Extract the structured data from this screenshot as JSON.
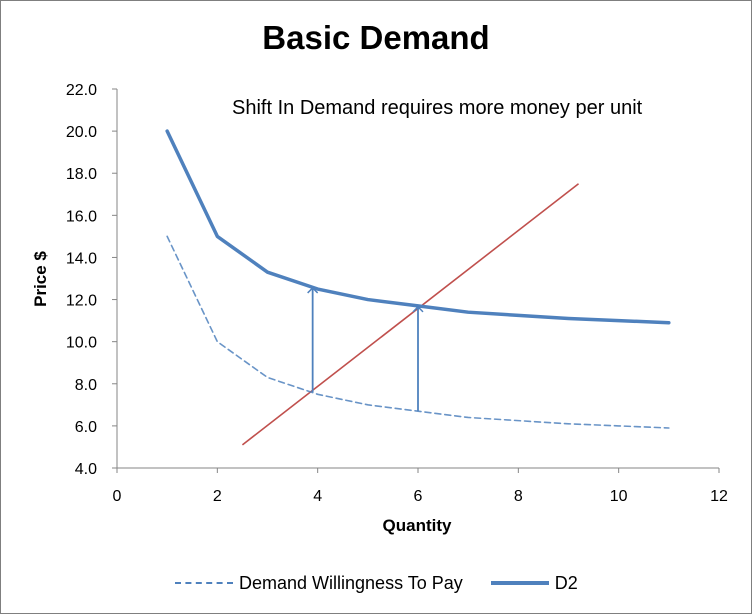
{
  "chart_data": {
    "type": "line",
    "title": "Basic Demand",
    "xlabel": "Quantity",
    "ylabel": "Price $",
    "xlim": [
      0,
      12
    ],
    "ylim": [
      4.0,
      22.0
    ],
    "xticks": [
      "0",
      "2",
      "4",
      "6",
      "8",
      "10",
      "12"
    ],
    "yticks": [
      "4.0",
      "6.0",
      "8.0",
      "10.0",
      "12.0",
      "14.0",
      "16.0",
      "18.0",
      "20.0",
      "22.0"
    ],
    "annotation": "Shift In Demand requires more money per unit",
    "legend_position": "bottom",
    "series": [
      {
        "name": "Demand Willingness To Pay",
        "style": "dashed",
        "color": "#4f81bd",
        "x": [
          1,
          2,
          3,
          4,
          5,
          6,
          7,
          8,
          9,
          10,
          11
        ],
        "values": [
          15.0,
          10.0,
          8.3,
          7.5,
          7.0,
          6.7,
          6.4,
          6.25,
          6.1,
          6.0,
          5.9
        ]
      },
      {
        "name": "D2",
        "style": "solid",
        "color": "#4f81bd",
        "x": [
          1,
          2,
          3,
          4,
          5,
          6,
          7,
          8,
          9,
          10,
          11
        ],
        "values": [
          20.0,
          15.0,
          13.3,
          12.5,
          12.0,
          11.7,
          11.4,
          11.25,
          11.1,
          11.0,
          10.9
        ]
      }
    ],
    "supply_line": {
      "color": "#c0504d",
      "from": [
        2.5,
        5.1
      ],
      "to": [
        9.2,
        17.5
      ]
    },
    "shift_arrows": [
      {
        "x": 3.9,
        "from": 7.6,
        "to": 12.6
      },
      {
        "x": 6.0,
        "from": 6.7,
        "to": 11.7
      }
    ],
    "axis_color": "#868686"
  }
}
